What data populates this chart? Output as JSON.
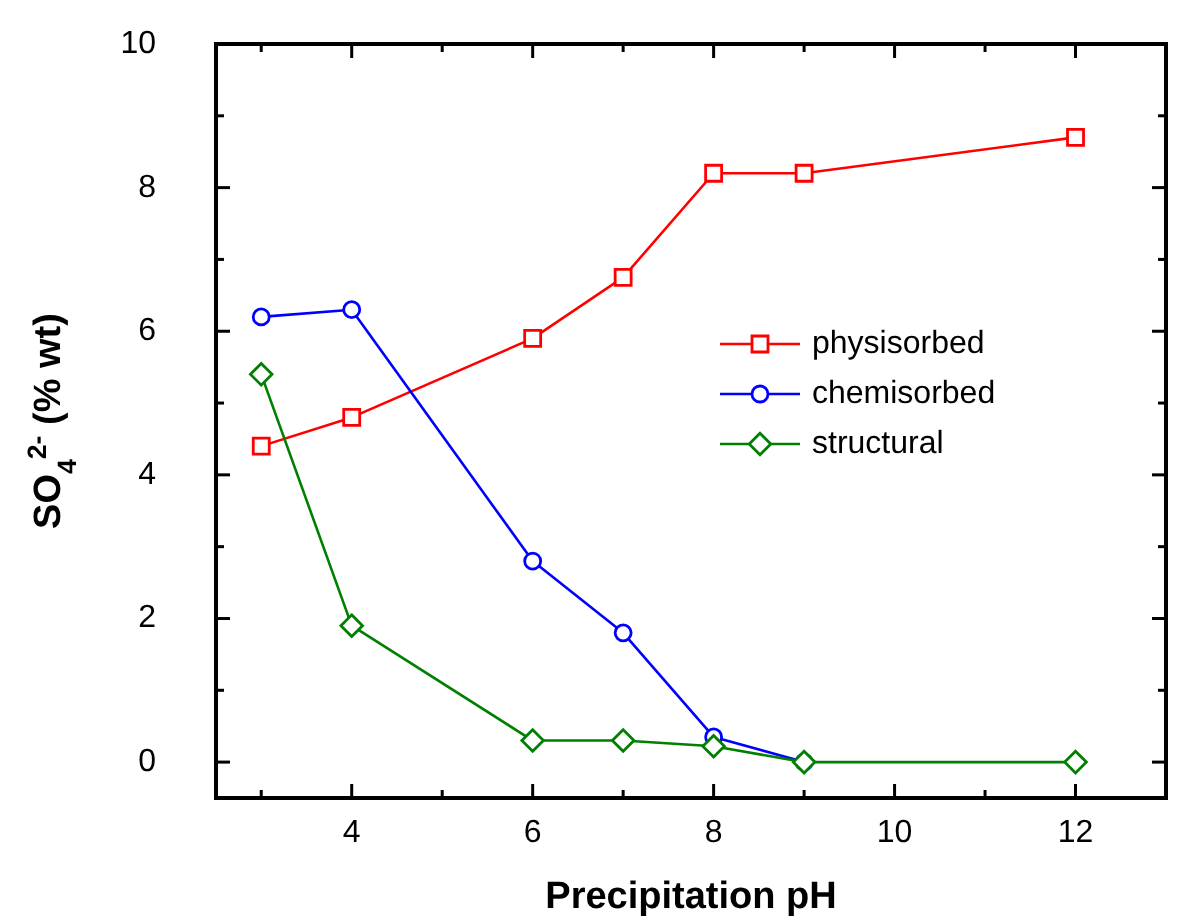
{
  "chart_data": {
    "type": "line",
    "xlabel": "Precipitation pH",
    "ylabel": "SO$_{4}$$^{2-}$ (% wt)",
    "xlim": [
      2.5,
      13
    ],
    "ylim": [
      -0.5,
      10
    ],
    "xticks": [
      {
        "value": 3,
        "label": null
      },
      4,
      {
        "value": 5,
        "label": null
      },
      6,
      {
        "value": 7,
        "label": null
      },
      8,
      {
        "value": 9,
        "label": null
      },
      10,
      {
        "value": 11,
        "label": null
      },
      12
    ],
    "yticks": [
      0,
      {
        "value": 1,
        "label": null
      },
      2,
      {
        "value": 3,
        "label": null
      },
      4,
      {
        "value": 5,
        "label": null
      },
      6,
      {
        "value": 7,
        "label": null
      },
      8,
      {
        "value": 9,
        "label": null
      },
      10
    ],
    "grid": false,
    "legend": "right",
    "line_style": "solid",
    "series": [
      {
        "name": "physisorbed",
        "color": "#ff0000",
        "marker": "square",
        "x": [
          3,
          4,
          6,
          7,
          8,
          9,
          12
        ],
        "values": [
          4.4,
          4.8,
          5.9,
          6.75,
          8.2,
          8.2,
          8.7
        ]
      },
      {
        "name": "chemisorbed",
        "color": "#0000ff",
        "marker": "circle",
        "x": [
          3,
          4,
          6,
          7,
          8,
          9
        ],
        "values": [
          6.2,
          6.3,
          2.8,
          1.8,
          0.35,
          0
        ]
      },
      {
        "name": "structural",
        "color": "#008000",
        "marker": "diamond",
        "x": [
          3,
          4,
          6,
          7,
          8,
          9,
          12
        ],
        "values": [
          5.4,
          1.9,
          0.3,
          0.3,
          0.22,
          0,
          0
        ]
      }
    ]
  }
}
